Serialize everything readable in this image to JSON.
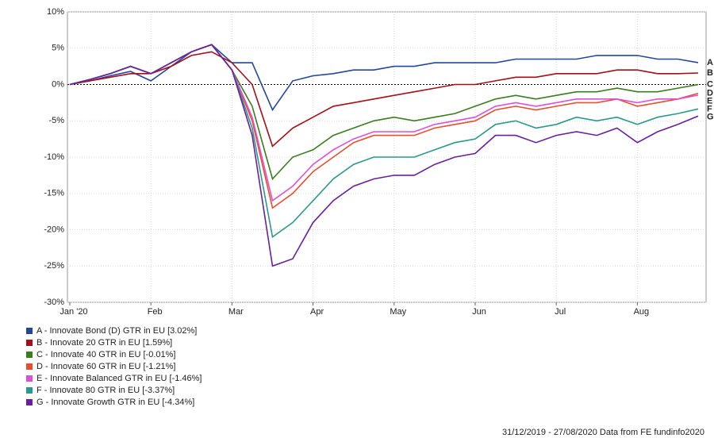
{
  "chart_data": {
    "type": "line",
    "categories": [
      "Jan '20",
      null,
      null,
      null,
      "Feb",
      null,
      null,
      null,
      "Mar",
      null,
      null,
      null,
      "Apr",
      null,
      null,
      null,
      "May",
      null,
      null,
      null,
      "Jun",
      null,
      null,
      null,
      "Jul",
      null,
      null,
      null,
      "Aug",
      null,
      null,
      null
    ],
    "ylim": [
      -30,
      10
    ],
    "yticks": [
      {
        "value": -30,
        "label": "-30%"
      },
      {
        "value": -25,
        "label": "-25%"
      },
      {
        "value": -20,
        "label": "-20%"
      },
      {
        "value": -15,
        "label": "-15%"
      },
      {
        "value": -10,
        "label": "-10%"
      },
      {
        "value": -5,
        "label": "-5%"
      },
      {
        "value": 0,
        "label": "0%"
      },
      {
        "value": 5,
        "label": "5%"
      },
      {
        "value": 10,
        "label": "10%"
      }
    ],
    "grid": true,
    "series": [
      {
        "name": "A - Innovate Bond (D) GTR in EU [3.02%]",
        "label": "A",
        "color": "#2347a0",
        "values": [
          0,
          0.5,
          1.2,
          1.8,
          0.5,
          2.5,
          4.5,
          5.5,
          3,
          3,
          -3.5,
          0.5,
          1.2,
          1.5,
          2,
          2,
          2.5,
          2.5,
          3,
          3,
          3,
          3,
          3.5,
          3.5,
          3.5,
          3.5,
          4,
          4,
          4,
          3.5,
          3.5,
          3.02
        ]
      },
      {
        "name": "B - Innovate 20 GTR in EU [1.59%]",
        "label": "B",
        "color": "#a50f15",
        "values": [
          0,
          0.5,
          1,
          1.5,
          1.5,
          2.5,
          4,
          4.5,
          3,
          0,
          -8.5,
          -6,
          -4.5,
          -3,
          -2.5,
          -2,
          -1.5,
          -1,
          -0.5,
          0,
          0,
          0.5,
          1,
          1,
          1.5,
          1.5,
          1.5,
          2,
          2,
          1.5,
          1.5,
          1.59
        ]
      },
      {
        "name": "C - Innovate 40 GTR in EU [-0.01%]",
        "label": "C",
        "color": "#3a7d1c",
        "values": [
          0,
          0.7,
          1.5,
          2.5,
          1.5,
          3,
          4.5,
          5.5,
          2,
          -3,
          -13,
          -10,
          -9,
          -7,
          -6,
          -5,
          -4.5,
          -5,
          -4.5,
          -4,
          -3,
          -2,
          -1.5,
          -2,
          -1.5,
          -1,
          -1,
          -0.5,
          -1,
          -1,
          -0.5,
          -0.01
        ]
      },
      {
        "name": "D - Innovate 60 GTR in EU [-1.21%]",
        "label": "D",
        "color": "#e4502a",
        "values": [
          0,
          0.7,
          1.5,
          2.5,
          1.5,
          3,
          4.5,
          5.5,
          2,
          -5,
          -17,
          -15,
          -12,
          -10,
          -8,
          -7,
          -7,
          -7,
          -6,
          -5.5,
          -5,
          -3.5,
          -3,
          -3.5,
          -3,
          -2.5,
          -2.5,
          -2,
          -3,
          -2.5,
          -2,
          -1.21
        ]
      },
      {
        "name": "E - Innovate Balanced GTR in EU [-1.46%]",
        "label": "E",
        "color": "#de4fd8",
        "values": [
          0,
          0.7,
          1.5,
          2.5,
          1.5,
          3,
          4.5,
          5.5,
          2,
          -4.5,
          -16,
          -14,
          -11,
          -9,
          -7.5,
          -6.5,
          -6.5,
          -6.5,
          -5.5,
          -5,
          -4.5,
          -3,
          -2.5,
          -3,
          -2.5,
          -2,
          -2,
          -2,
          -2.5,
          -2,
          -2,
          -1.46
        ]
      },
      {
        "name": "F - Innovate 80 GTR in EU [-3.37%]",
        "label": "F",
        "color": "#279a8c",
        "values": [
          0,
          0.7,
          1.5,
          2.5,
          1.5,
          3,
          4.5,
          5.5,
          2,
          -6,
          -21,
          -19,
          -16,
          -13,
          -11,
          -10,
          -10,
          -10,
          -9,
          -8,
          -7.5,
          -5.5,
          -5,
          -6,
          -5.5,
          -4.5,
          -5,
          -4.5,
          -5.5,
          -4.5,
          -4,
          -3.37
        ]
      },
      {
        "name": "G - Innovate Growth GTR in EU [-4.34%]",
        "label": "G",
        "color": "#6a1fa0",
        "values": [
          0,
          0.7,
          1.5,
          2.5,
          1.5,
          3,
          4.5,
          5.5,
          2,
          -7,
          -25,
          -24,
          -19,
          -16,
          -14,
          -13,
          -12.5,
          -12.5,
          -11,
          -10,
          -9.5,
          -7,
          -7,
          -8,
          -7,
          -6.5,
          -7,
          -6,
          -8,
          -6.5,
          -5.5,
          -4.34
        ]
      }
    ],
    "footer": "31/12/2019 - 27/08/2020 Data from FE fundinfo2020"
  }
}
